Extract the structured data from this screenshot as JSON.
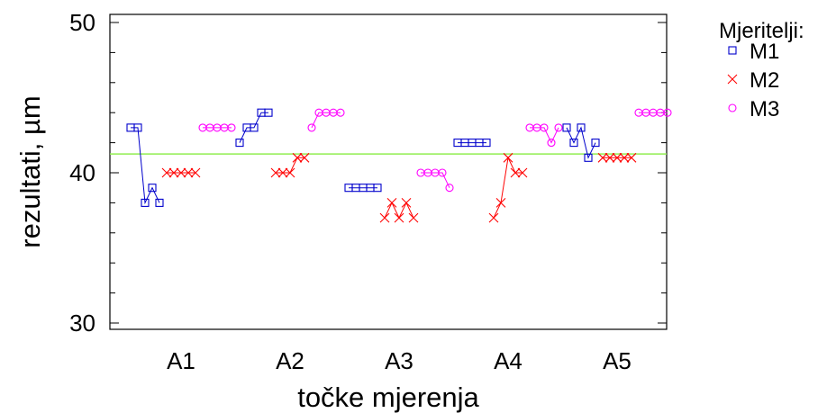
{
  "chart_data": {
    "type": "scatter",
    "title": "",
    "xlabel": "točke mjerenja",
    "ylabel": "rezultati, µm",
    "ylim": [
      30,
      50
    ],
    "y_ticks": [
      30,
      40,
      50
    ],
    "categories": [
      "A1",
      "A2",
      "A3",
      "A4",
      "A5"
    ],
    "grid": false,
    "legend_title": "Mjeritelji:",
    "legend_position": "right",
    "reference_line": {
      "value": 41.25,
      "color": "#90ee50"
    },
    "series": [
      {
        "name": "M1",
        "marker": "square",
        "color": "#0000cc",
        "values": [
          [
            43,
            43,
            38,
            39,
            38
          ],
          [
            42,
            43,
            43,
            44,
            44
          ],
          [
            39,
            39,
            39,
            39,
            39
          ],
          [
            42,
            42,
            42,
            42,
            42
          ],
          [
            43,
            42,
            43,
            41,
            42
          ]
        ]
      },
      {
        "name": "M2",
        "marker": "x",
        "color": "#ff0000",
        "values": [
          [
            40,
            40,
            40,
            40,
            40
          ],
          [
            40,
            40,
            40,
            41,
            41
          ],
          [
            37,
            38,
            37,
            38,
            37
          ],
          [
            37,
            38,
            41,
            40,
            40
          ],
          [
            41,
            41,
            41,
            41,
            41
          ]
        ]
      },
      {
        "name": "M3",
        "marker": "circle",
        "color": "#ff00ff",
        "values": [
          [
            43,
            43,
            43,
            43,
            43
          ],
          [
            43,
            44,
            44,
            44,
            44
          ],
          [
            40,
            40,
            40,
            40,
            39
          ],
          [
            43,
            43,
            43,
            42,
            43
          ],
          [
            44,
            44,
            44,
            44,
            44
          ]
        ]
      }
    ]
  }
}
